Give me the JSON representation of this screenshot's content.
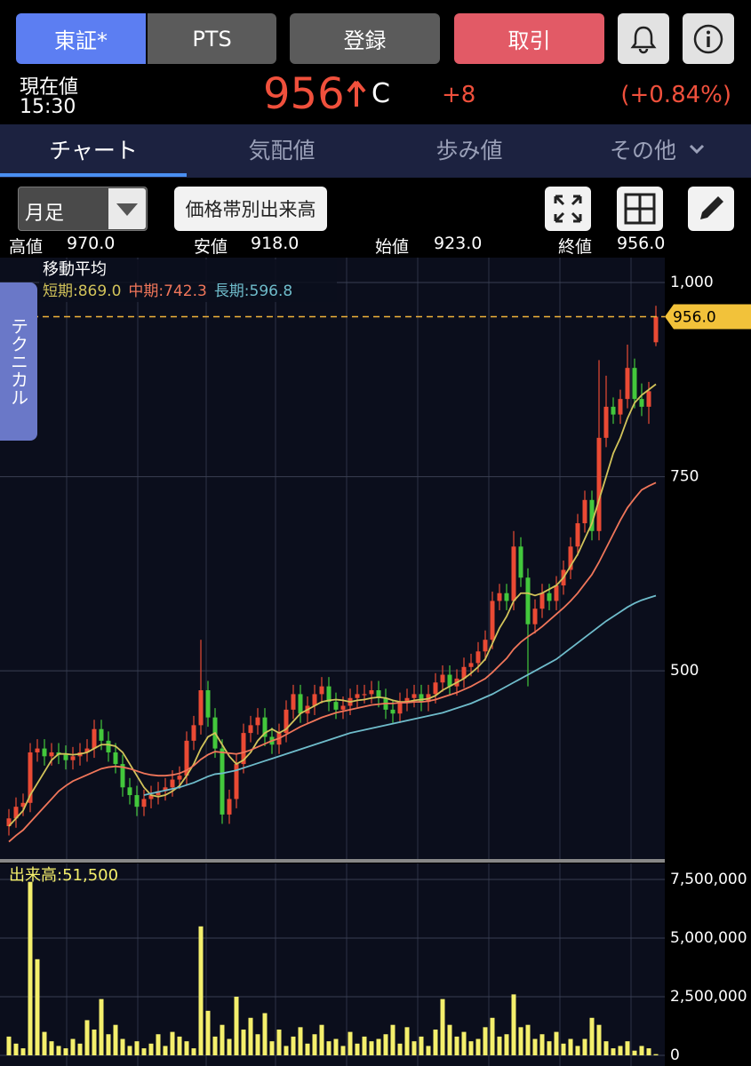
{
  "header": {
    "buttons": [
      "東証*",
      "PTS",
      "登録",
      "取引"
    ],
    "price_label": "現在値",
    "time": "15:30",
    "price": "956",
    "price_flag": "C",
    "change": "+8",
    "change_pct": "(+0.84%)"
  },
  "tabs": [
    "チャート",
    "気配値",
    "歩み値",
    "その他"
  ],
  "controls": {
    "period": "月足",
    "volume_profile": "価格帯別出来高",
    "technical": "テクニカル"
  },
  "ohlc_bar": [
    [
      "高値",
      "970.0"
    ],
    [
      "安値",
      "918.0"
    ],
    [
      "始値",
      "923.0"
    ],
    [
      "終値",
      "956.0"
    ]
  ],
  "chart_data": [
    {
      "type": "candlestick",
      "legend_title": "移動平均",
      "ylim": [
        260,
        1032
      ],
      "yticks": [
        500,
        750,
        {
          "value": 1000,
          "label": "1,000"
        }
      ],
      "current_price": {
        "value": 956,
        "label": "956.0"
      },
      "up_color": "#ea4a34",
      "down_color": "#43c83c",
      "open": [
        300,
        310,
        325,
        330,
        395,
        400,
        390,
        395,
        392,
        385,
        390,
        395,
        400,
        425,
        410,
        395,
        380,
        350,
        340,
        325,
        335,
        340,
        345,
        350,
        360,
        365,
        410,
        430,
        475,
        440,
        400,
        315,
        335,
        380,
        420,
        430,
        440,
        415,
        405,
        420,
        450,
        470,
        445,
        455,
        470,
        480,
        460,
        450,
        455,
        465,
        470,
        470,
        475,
        465,
        450,
        445,
        460,
        465,
        470,
        460,
        470,
        485,
        495,
        480,
        490,
        505,
        510,
        525,
        540,
        590,
        600,
        590,
        660,
        620,
        560,
        580,
        600,
        590,
        610,
        630,
        660,
        690,
        720,
        680,
        800,
        840,
        830,
        850,
        890,
        850,
        840,
        923
      ],
      "high": [
        322,
        337,
        342,
        407,
        412,
        412,
        407,
        407,
        404,
        402,
        407,
        412,
        437,
        437,
        422,
        407,
        392,
        362,
        352,
        347,
        352,
        357,
        362,
        372,
        377,
        422,
        442,
        540,
        487,
        452,
        412,
        347,
        392,
        432,
        442,
        452,
        452,
        427,
        432,
        462,
        482,
        482,
        467,
        482,
        492,
        492,
        472,
        467,
        477,
        482,
        482,
        487,
        487,
        477,
        462,
        472,
        477,
        482,
        482,
        482,
        497,
        507,
        507,
        502,
        517,
        522,
        537,
        552,
        602,
        612,
        612,
        680,
        672,
        632,
        592,
        612,
        612,
        622,
        642,
        672,
        702,
        732,
        732,
        900,
        880,
        852,
        862,
        920,
        902,
        870,
        872,
        970
      ],
      "low": [
        288,
        298,
        313,
        318,
        383,
        378,
        378,
        380,
        373,
        373,
        378,
        383,
        388,
        398,
        383,
        368,
        338,
        328,
        313,
        313,
        323,
        328,
        333,
        338,
        348,
        353,
        398,
        418,
        428,
        388,
        303,
        303,
        323,
        368,
        408,
        418,
        403,
        393,
        393,
        408,
        438,
        433,
        433,
        443,
        458,
        448,
        438,
        438,
        443,
        453,
        458,
        458,
        453,
        438,
        433,
        433,
        448,
        453,
        448,
        448,
        458,
        473,
        468,
        468,
        478,
        493,
        498,
        513,
        528,
        578,
        578,
        578,
        608,
        480,
        548,
        568,
        578,
        578,
        598,
        618,
        648,
        678,
        668,
        668,
        788,
        818,
        818,
        838,
        838,
        828,
        818,
        918
      ],
      "close": [
        310,
        325,
        330,
        395,
        400,
        390,
        395,
        392,
        385,
        390,
        395,
        400,
        425,
        410,
        395,
        380,
        350,
        340,
        325,
        335,
        340,
        345,
        350,
        360,
        365,
        410,
        430,
        475,
        440,
        400,
        315,
        335,
        380,
        420,
        430,
        440,
        415,
        405,
        420,
        450,
        470,
        445,
        455,
        470,
        480,
        460,
        450,
        455,
        465,
        470,
        470,
        475,
        465,
        450,
        445,
        460,
        465,
        470,
        460,
        470,
        485,
        495,
        480,
        490,
        505,
        510,
        525,
        540,
        590,
        600,
        590,
        660,
        620,
        560,
        580,
        600,
        590,
        610,
        630,
        660,
        690,
        720,
        680,
        800,
        840,
        830,
        850,
        890,
        850,
        840,
        860,
        956
      ],
      "series": [
        {
          "name": "短期:869.0",
          "color": "#d2c35a",
          "values": [
            300,
            310,
            320,
            340,
            355,
            370,
            385,
            393,
            393,
            392,
            393,
            395,
            400,
            405,
            405,
            403,
            395,
            380,
            365,
            350,
            340,
            338,
            340,
            345,
            352,
            365,
            380,
            400,
            415,
            420,
            405,
            390,
            380,
            385,
            395,
            410,
            420,
            425,
            420,
            425,
            435,
            445,
            450,
            455,
            460,
            462,
            463,
            462,
            460,
            462,
            463,
            465,
            466,
            465,
            462,
            460,
            460,
            462,
            463,
            464,
            468,
            475,
            480,
            485,
            490,
            497,
            505,
            515,
            535,
            555,
            570,
            590,
            600,
            600,
            597,
            600,
            605,
            610,
            620,
            635,
            650,
            670,
            690,
            720,
            750,
            780,
            800,
            825,
            845,
            855,
            862,
            869
          ]
        },
        {
          "name": "中期:742.3",
          "color": "#f0765a",
          "values": [
            280,
            288,
            295,
            305,
            315,
            325,
            335,
            345,
            352,
            358,
            362,
            366,
            370,
            374,
            376,
            377,
            376,
            374,
            371,
            368,
            366,
            365,
            365,
            366,
            368,
            372,
            378,
            386,
            392,
            396,
            395,
            394,
            393,
            395,
            398,
            402,
            406,
            410,
            413,
            418,
            423,
            428,
            432,
            436,
            440,
            443,
            446,
            448,
            450,
            452,
            454,
            456,
            457,
            458,
            458,
            459,
            459,
            460,
            460,
            461,
            463,
            466,
            469,
            472,
            476,
            480,
            485,
            490,
            498,
            507,
            516,
            528,
            537,
            544,
            550,
            557,
            565,
            573,
            581,
            590,
            600,
            612,
            624,
            640,
            658,
            676,
            694,
            710,
            722,
            733,
            738,
            742.3
          ]
        },
        {
          "name": "長期:596.8",
          "color": "#6fbccb",
          "values": [
            null,
            null,
            null,
            null,
            null,
            null,
            null,
            null,
            null,
            null,
            null,
            null,
            null,
            null,
            null,
            null,
            null,
            null,
            null,
            340,
            342,
            344,
            346,
            348,
            350,
            353,
            356,
            360,
            364,
            367,
            368,
            370,
            372,
            375,
            378,
            381,
            384,
            387,
            390,
            393,
            396,
            399,
            402,
            405,
            408,
            411,
            414,
            417,
            420,
            422,
            424,
            426,
            428,
            430,
            432,
            434,
            436,
            438,
            440,
            442,
            444,
            446,
            449,
            452,
            455,
            458,
            462,
            466,
            470,
            475,
            480,
            485,
            490,
            495,
            500,
            505,
            510,
            515,
            522,
            529,
            536,
            543,
            550,
            557,
            564,
            570,
            576,
            582,
            587,
            591,
            594,
            596.8
          ]
        }
      ]
    },
    {
      "type": "bar",
      "title": "出来高:51,500",
      "color": "#f4ef6c",
      "ylim": [
        0,
        8070000
      ],
      "yticks": [
        0,
        {
          "value": 2500000,
          "label": "2,500,000"
        },
        {
          "value": 5000000,
          "label": "5,000,000"
        },
        {
          "value": 7500000,
          "label": "7,500,000"
        }
      ],
      "values": [
        800000,
        500000,
        300000,
        7400000,
        4100000,
        1000000,
        600000,
        400000,
        300000,
        700000,
        500000,
        1500000,
        1100000,
        2400000,
        900000,
        1300000,
        700000,
        400000,
        600000,
        300000,
        500000,
        900000,
        400000,
        1000000,
        800000,
        600000,
        300000,
        5500000,
        1900000,
        800000,
        1300000,
        700000,
        2500000,
        1100000,
        1600000,
        900000,
        1800000,
        600000,
        1100000,
        400000,
        800000,
        1200000,
        500000,
        900000,
        1300000,
        600000,
        700000,
        400000,
        1000000,
        500000,
        800000,
        600000,
        700000,
        900000,
        1300000,
        500000,
        1200000,
        600000,
        800000,
        400000,
        1100000,
        2400000,
        1300000,
        800000,
        1000000,
        600000,
        700000,
        1200000,
        1600000,
        800000,
        900000,
        2600000,
        1200000,
        1300000,
        700000,
        900000,
        600000,
        1000000,
        500000,
        700000,
        400000,
        700000,
        1600000,
        1300000,
        600000,
        300000,
        400000,
        600000,
        200000,
        400000,
        300000,
        51500
      ]
    }
  ]
}
